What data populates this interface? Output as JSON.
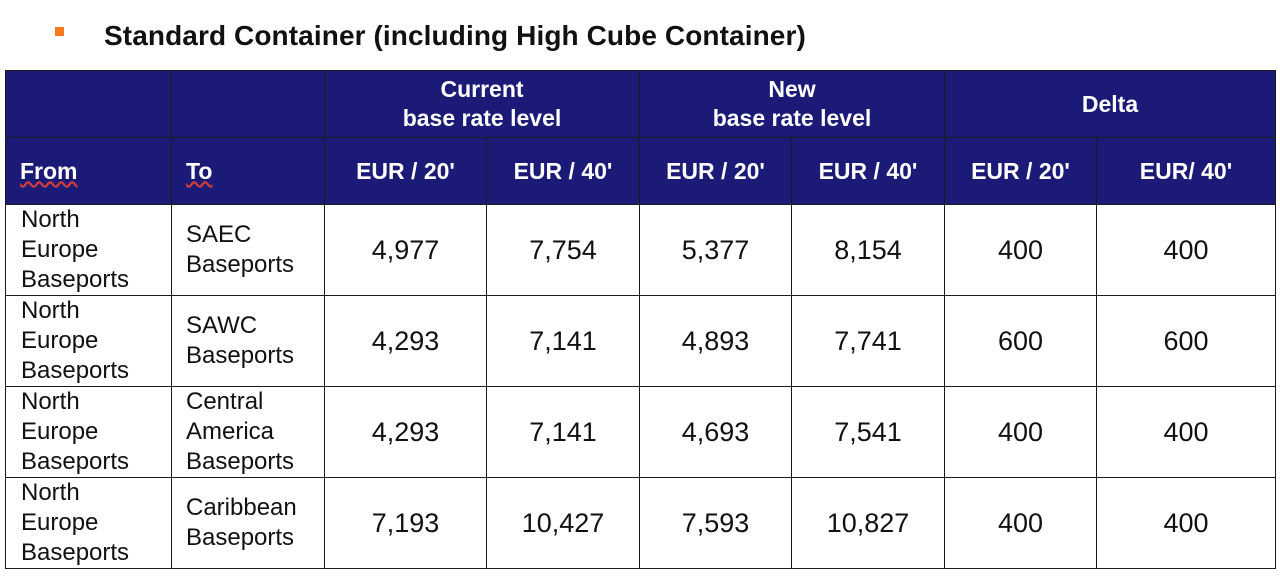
{
  "heading": {
    "text": "Standard Container (including High Cube Container)",
    "bullet_color": "#f47a20"
  },
  "table": {
    "header_bg": "#1b1b77",
    "groups": {
      "current_line1": "Current",
      "current_line2": "base rate level",
      "new_line1": "New",
      "new_line2": "base rate level",
      "delta": "Delta"
    },
    "columns": {
      "from": "From",
      "to": "To",
      "cur20": "EUR / 20'",
      "cur40": "EUR / 40'",
      "new20": "EUR / 20'",
      "new40": "EUR / 40'",
      "delta20": "EUR / 20'",
      "delta40": "EUR/ 40'"
    },
    "rows": [
      {
        "from_l1": "North",
        "from_l2": "Europe",
        "from_l3": "Baseports",
        "to_l1": "SAEC",
        "to_l2": "Baseports",
        "to_l3": "",
        "cur20": "4,977",
        "cur40": "7,754",
        "new20": "5,377",
        "new40": "8,154",
        "delta20": "400",
        "delta40": "400"
      },
      {
        "from_l1": "North",
        "from_l2": "Europe",
        "from_l3": "Baseports",
        "to_l1": "SAWC",
        "to_l2": "Baseports",
        "to_l3": "",
        "cur20": "4,293",
        "cur40": "7,141",
        "new20": "4,893",
        "new40": "7,741",
        "delta20": "600",
        "delta40": "600"
      },
      {
        "from_l1": "North",
        "from_l2": "Europe",
        "from_l3": "Baseports",
        "to_l1": "Central",
        "to_l2": "America",
        "to_l3": "Baseports",
        "cur20": "4,293",
        "cur40": "7,141",
        "new20": "4,693",
        "new40": "7,541",
        "delta20": "400",
        "delta40": "400"
      },
      {
        "from_l1": "North",
        "from_l2": "Europe",
        "from_l3": "Baseports",
        "to_l1": "Caribbean",
        "to_l2": "Baseports",
        "to_l3": "",
        "cur20": "7,193",
        "cur40": "10,427",
        "new20": "7,593",
        "new40": "10,827",
        "delta20": "400",
        "delta40": "400"
      }
    ]
  }
}
